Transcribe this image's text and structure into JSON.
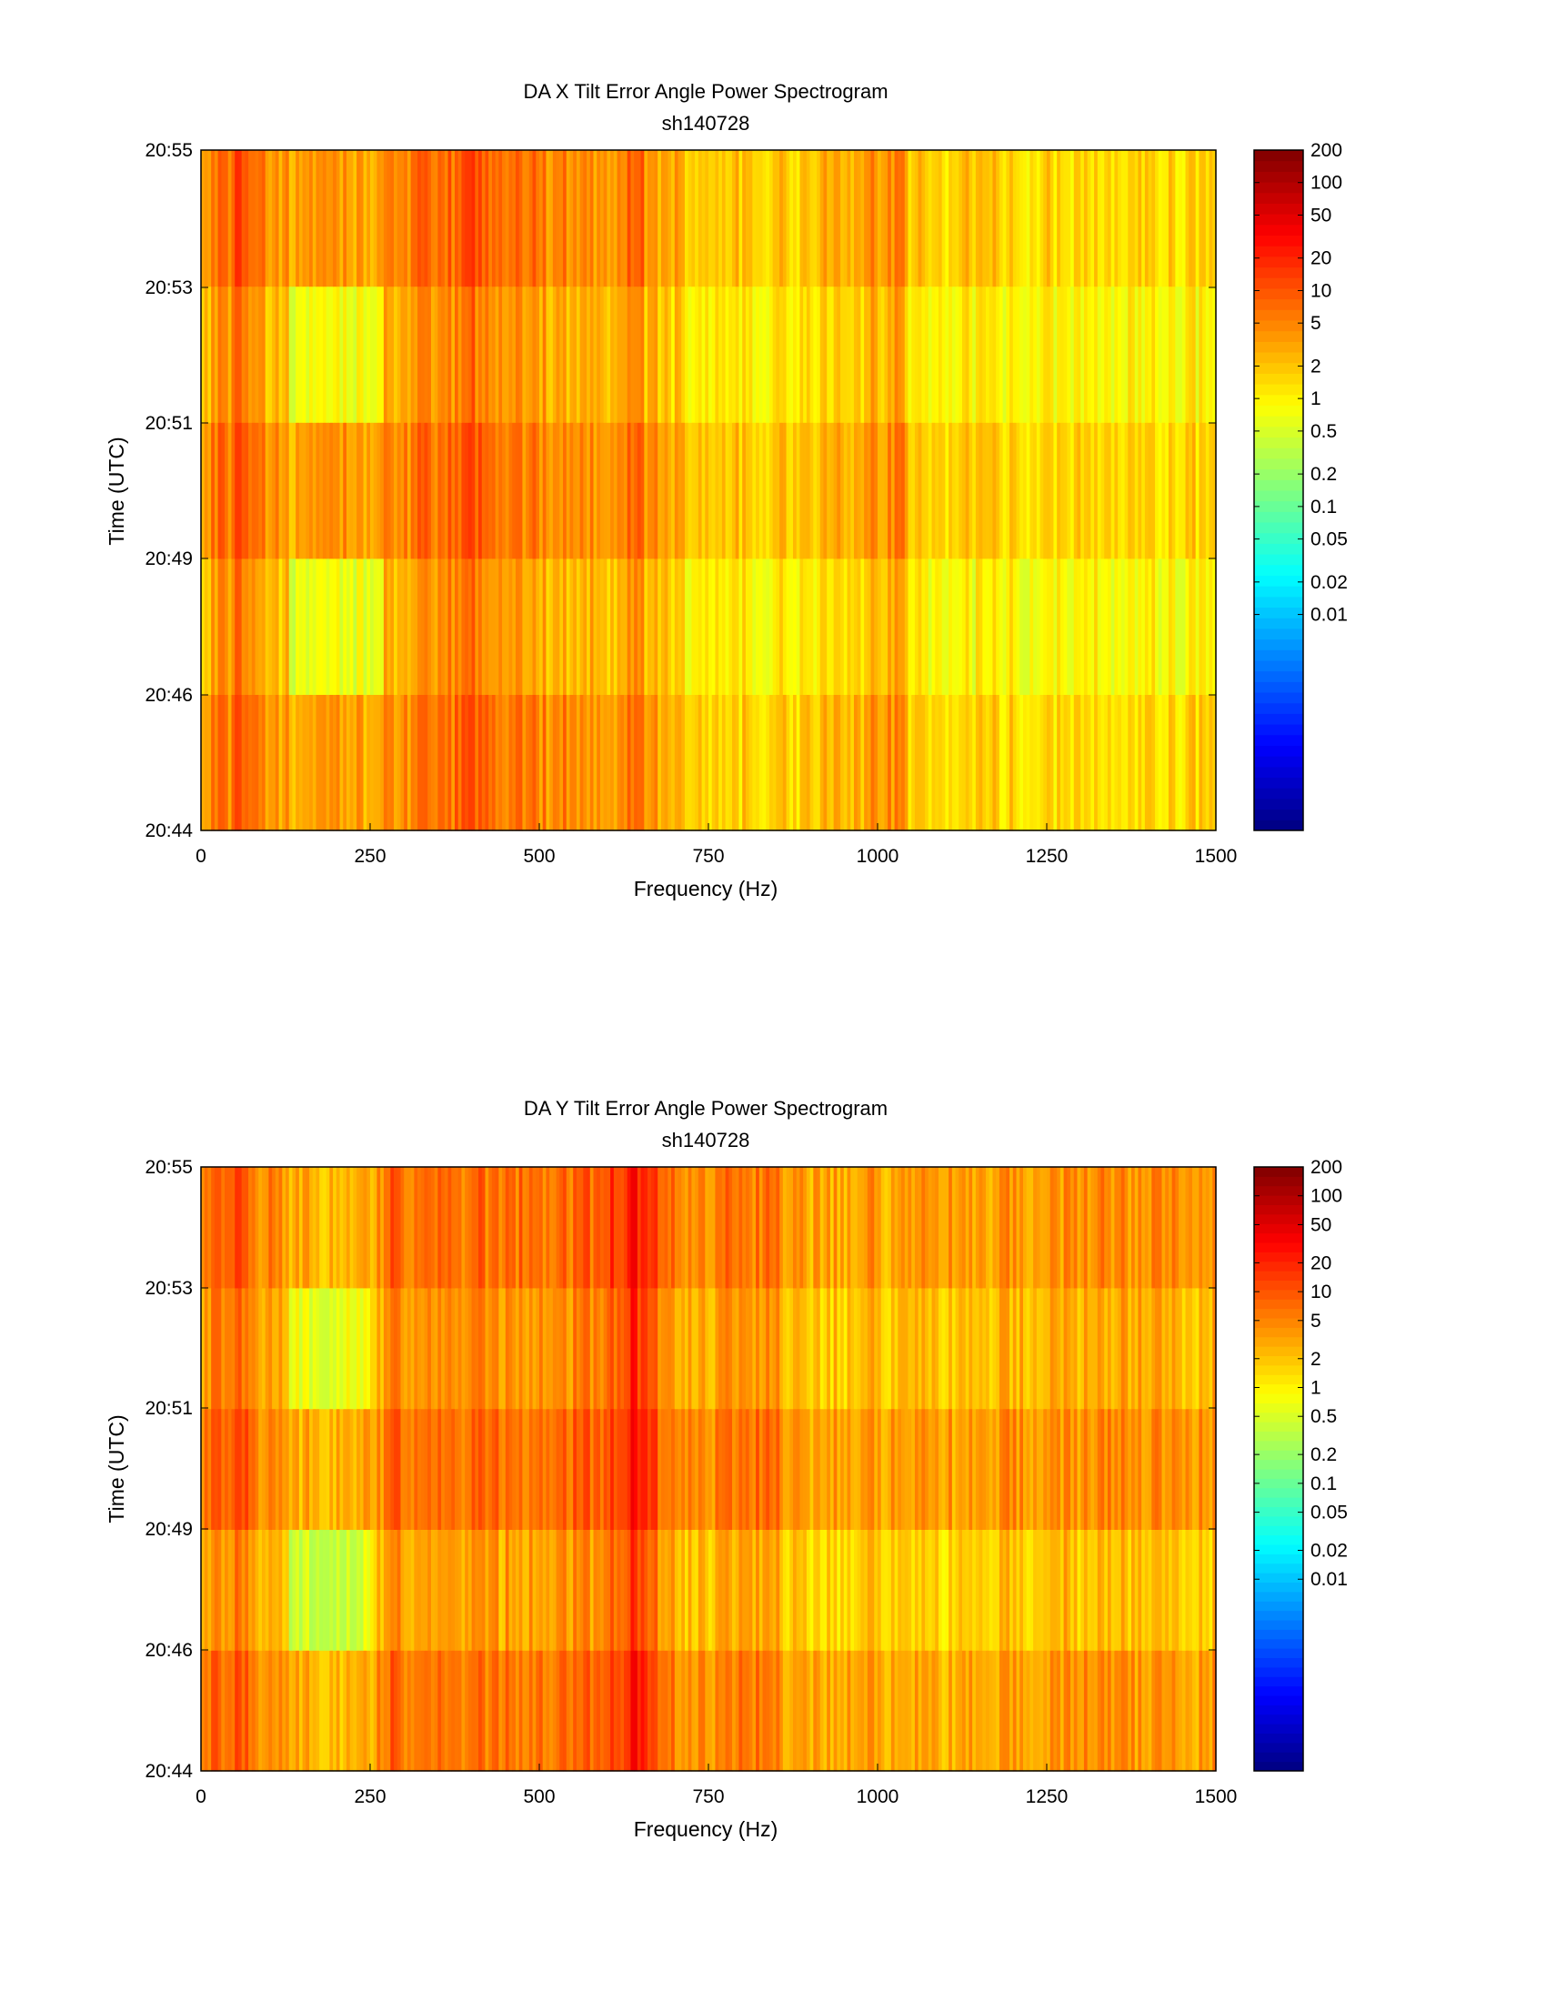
{
  "chart_data": [
    {
      "type": "heatmap",
      "title": "DA X Tilt Error Angle Power Spectrogram",
      "subtitle": "sh140728",
      "xlabel": "Frequency (Hz)",
      "ylabel": "Time (UTC)",
      "xlim": [
        0,
        1500
      ],
      "xticks": [
        0,
        250,
        500,
        750,
        1000,
        1250,
        1500
      ],
      "ytick_labels": [
        "20:44",
        "20:46",
        "20:49",
        "20:51",
        "20:53",
        "20:55"
      ],
      "time_bands": [
        "20:44",
        "20:46",
        "20:49",
        "20:51",
        "20:53"
      ],
      "colorbar": {
        "scale": "log",
        "range": [
          0.0001,
          200
        ],
        "tick_values": [
          200,
          100,
          50,
          20,
          10,
          5,
          2,
          1,
          0.5,
          0.2,
          0.1,
          0.05,
          0.02,
          0.01
        ],
        "tick_labels": [
          "200",
          "100",
          "50",
          "20",
          "10",
          "5",
          "2",
          "1",
          "0.5",
          "0.2",
          "0.1",
          "0.05",
          "0.02",
          "0.01"
        ]
      },
      "band_profile": {
        "freqs": [
          0,
          25,
          40,
          55,
          70,
          90,
          120,
          150,
          250,
          270,
          300,
          360,
          400,
          440,
          480,
          520,
          600,
          625,
          640,
          660,
          700,
          720,
          900,
          1040,
          1045,
          1100,
          1200,
          1500
        ],
        "values": [
          3,
          8,
          6,
          12,
          9,
          5,
          3.5,
          3,
          3.5,
          5,
          5,
          6,
          12,
          7,
          6,
          5,
          5,
          4,
          10,
          4,
          3,
          2,
          1.8,
          6,
          2,
          1.7,
          1.6,
          1.6
        ]
      },
      "band_scale": [
        0.9,
        0.55,
        1.0,
        0.6,
        1.0
      ],
      "quiet_region_hz": [
        130,
        270
      ],
      "quiet_band_scale": [
        1.0,
        0.35,
        1.0,
        0.35,
        1.0
      ]
    },
    {
      "type": "heatmap",
      "title": "DA Y Tilt Error Angle Power Spectrogram",
      "subtitle": "sh140728",
      "xlabel": "Frequency (Hz)",
      "ylabel": "Time (UTC)",
      "xlim": [
        0,
        1500
      ],
      "xticks": [
        0,
        250,
        500,
        750,
        1000,
        1250,
        1500
      ],
      "ytick_labels": [
        "20:44",
        "20:46",
        "20:49",
        "20:51",
        "20:53",
        "20:55"
      ],
      "time_bands": [
        "20:44",
        "20:46",
        "20:49",
        "20:51",
        "20:53"
      ],
      "colorbar": {
        "scale": "log",
        "range": [
          0.0001,
          200
        ],
        "tick_values": [
          200,
          100,
          50,
          20,
          10,
          5,
          2,
          1,
          0.5,
          0.2,
          0.1,
          0.05,
          0.02,
          0.01
        ],
        "tick_labels": [
          "200",
          "100",
          "50",
          "20",
          "10",
          "5",
          "2",
          "1",
          "0.5",
          "0.2",
          "0.1",
          "0.05",
          "0.02",
          "0.01"
        ]
      },
      "band_profile": {
        "freqs": [
          0,
          25,
          40,
          60,
          75,
          100,
          150,
          250,
          290,
          300,
          400,
          500,
          580,
          620,
          640,
          660,
          700,
          720,
          820,
          900,
          1100,
          1300,
          1500
        ],
        "values": [
          4,
          7,
          6,
          12,
          6,
          4,
          2.5,
          3,
          10,
          5,
          6,
          6,
          8,
          15,
          30,
          12,
          6,
          3.5,
          6,
          3,
          3,
          4,
          3.5
        ]
      },
      "band_scale": [
        1.0,
        0.55,
        1.1,
        0.7,
        1.1
      ],
      "quiet_region_hz": [
        130,
        250
      ],
      "quiet_band_scale": [
        1.0,
        0.3,
        1.0,
        0.35,
        1.0
      ]
    }
  ]
}
